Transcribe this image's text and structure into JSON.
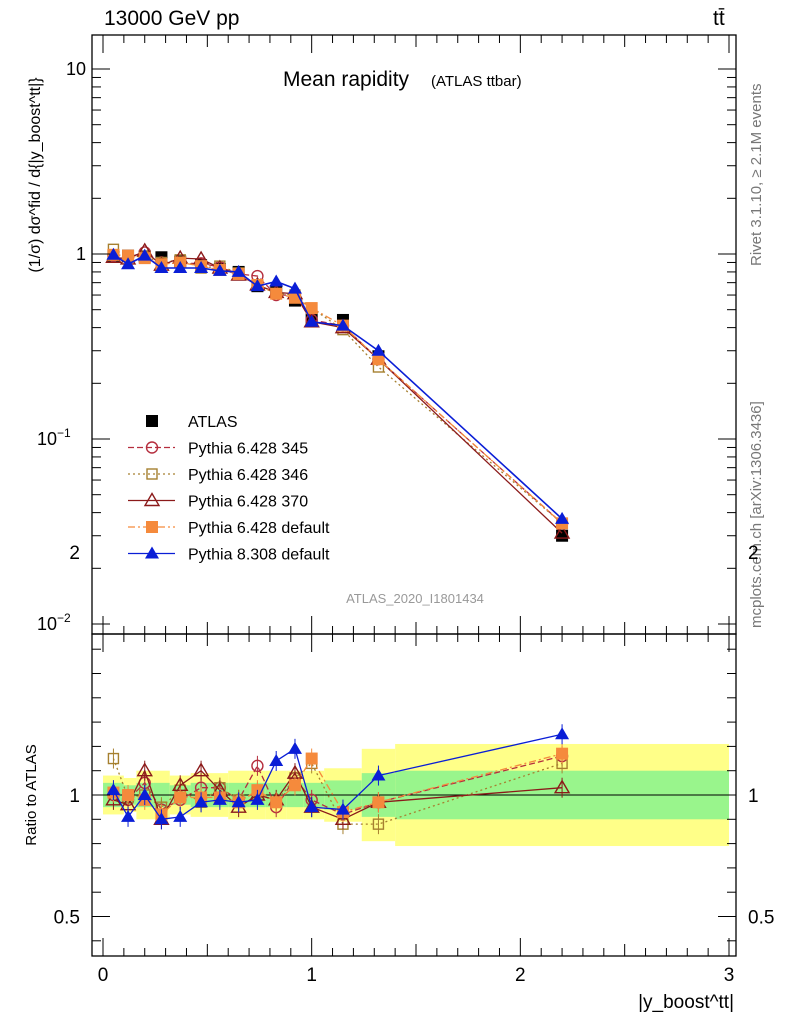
{
  "header": {
    "energy": "13000 GeV pp",
    "process": "tt̄"
  },
  "side": {
    "rivet": "Rivet 3.1.10, ≥ 2.1M events",
    "mcplots": "mcplots.cern.ch [arXiv:1306.3436]"
  },
  "chart_data": [
    {
      "type": "line",
      "title": "Mean rapidity",
      "subtitle": "(ATLAS ttbar)",
      "analysis": "ATLAS_2020_I1801434",
      "ylabel": "(1/σ) dσ^fid / d{|y_boost^tt|}",
      "yscale": "log",
      "ylim": [
        0.01,
        15
      ],
      "xlim": [
        -0.05,
        3.05
      ],
      "y_tick_labels": [
        "10^-2",
        "10^-1",
        "1",
        "10"
      ],
      "x": [
        0.05,
        0.12,
        0.2,
        0.28,
        0.37,
        0.47,
        0.56,
        0.65,
        0.74,
        0.83,
        0.92,
        1.0,
        1.15,
        1.32,
        2.2
      ],
      "series": [
        {
          "name": "ATLAS",
          "color": "#000000",
          "marker": "square-filled",
          "values": [
            0.98,
            0.98,
            0.97,
            0.96,
            0.91,
            0.87,
            0.83,
            0.8,
            0.67,
            0.63,
            0.56,
            0.45,
            0.44,
            0.28,
            0.03
          ]
        },
        {
          "name": "Pythia 6.428 345",
          "color": "#b52e3e",
          "marker": "circle-open",
          "dash": "6,3",
          "values": [
            0.98,
            0.96,
            1.02,
            0.9,
            0.89,
            0.89,
            0.85,
            0.78,
            0.76,
            0.6,
            0.6,
            0.44,
            0.41,
            0.27,
            0.035
          ]
        },
        {
          "name": "Pythia 6.428 346",
          "color": "#a68030",
          "marker": "square-open",
          "dash": "2,3",
          "values": [
            1.06,
            0.97,
            0.97,
            0.9,
            0.93,
            0.84,
            0.86,
            0.79,
            0.68,
            0.61,
            0.6,
            0.51,
            0.39,
            0.245,
            0.035
          ]
        },
        {
          "name": "Pythia 6.428 370",
          "color": "#8b1a1a",
          "marker": "triangle-open",
          "dash": "",
          "values": [
            0.96,
            0.94,
            1.04,
            0.87,
            0.95,
            0.94,
            0.84,
            0.77,
            0.68,
            0.62,
            0.61,
            0.43,
            0.4,
            0.27,
            0.031
          ]
        },
        {
          "name": "Pythia 6.428 default",
          "color": "#f58a3c",
          "marker": "square-filled",
          "dash": "7,3,2,3",
          "values": [
            0.99,
            0.98,
            0.95,
            0.88,
            0.9,
            0.86,
            0.82,
            0.78,
            0.68,
            0.61,
            0.58,
            0.51,
            0.41,
            0.27,
            0.035
          ]
        },
        {
          "name": "Pythia 8.308 default",
          "color": "#0a1ed6",
          "marker": "triangle-filled",
          "dash": "",
          "values": [
            0.99,
            0.88,
            0.98,
            0.84,
            0.84,
            0.84,
            0.81,
            0.8,
            0.67,
            0.71,
            0.65,
            0.43,
            0.41,
            0.3,
            0.037
          ]
        }
      ],
      "legend_position": "bottom-left"
    },
    {
      "type": "line",
      "ylabel": "Ratio to ATLAS",
      "xlabel": "|y_boost^tt|",
      "ylim": [
        0.3,
        2.5
      ],
      "xlim": [
        -0.05,
        3.05
      ],
      "x_ticks": [
        0,
        1,
        2,
        3
      ],
      "y_ticks": [
        0.5,
        1,
        2
      ],
      "band_edges": [
        0.0,
        0.1,
        0.16,
        0.24,
        0.32,
        0.42,
        0.52,
        0.6,
        0.7,
        0.78,
        0.88,
        0.96,
        1.06,
        1.24,
        1.4,
        3.0
      ],
      "band_green": [
        0.05,
        0.04,
        0.05,
        0.05,
        0.04,
        0.05,
        0.05,
        0.05,
        0.05,
        0.05,
        0.05,
        0.05,
        0.06,
        0.09,
        0.1
      ],
      "band_yellow": [
        0.08,
        0.07,
        0.1,
        0.1,
        0.08,
        0.09,
        0.09,
        0.1,
        0.1,
        0.1,
        0.1,
        0.1,
        0.11,
        0.19,
        0.21
      ],
      "series": [
        {
          "name": "Pythia 6.428 345",
          "values": [
            1.0,
            0.98,
            1.05,
            0.94,
            0.98,
            1.03,
            1.03,
            0.98,
            1.12,
            0.95,
            1.07,
            0.98,
            0.92,
            0.97,
            1.16
          ]
        },
        {
          "name": "Pythia 6.428 346",
          "values": [
            1.15,
            0.99,
            1.0,
            0.95,
            1.02,
            0.97,
            1.03,
            0.98,
            1.01,
            0.97,
            1.07,
            1.13,
            0.88,
            0.88,
            1.13
          ]
        },
        {
          "name": "Pythia 6.428 370",
          "values": [
            0.98,
            0.96,
            1.1,
            0.9,
            1.04,
            1.1,
            1.02,
            0.95,
            1.0,
            0.98,
            1.09,
            0.95,
            0.9,
            0.97,
            1.03
          ]
        },
        {
          "name": "Pythia 6.428 default",
          "values": [
            1.01,
            1.0,
            0.98,
            0.92,
            0.99,
            0.99,
            0.99,
            0.97,
            1.02,
            0.97,
            1.04,
            1.15,
            0.93,
            0.97,
            1.17
          ]
        },
        {
          "name": "Pythia 8.308 default",
          "values": [
            1.02,
            0.91,
            1.0,
            0.9,
            0.91,
            0.97,
            0.98,
            0.97,
            0.98,
            1.14,
            1.19,
            0.95,
            0.94,
            1.08,
            1.25
          ]
        }
      ]
    }
  ]
}
